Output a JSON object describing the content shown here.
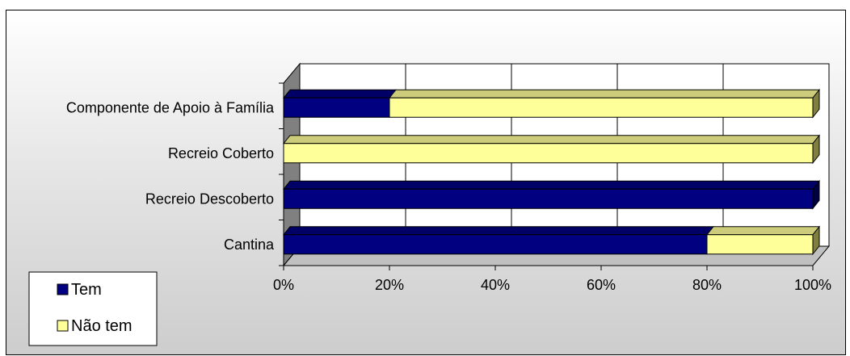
{
  "chart_data": {
    "type": "bar",
    "orientation": "horizontal",
    "stacked": "percent",
    "categories": [
      "Componente de Apoio à Família",
      "Recreio Coberto",
      "Recreio Descoberto",
      "Cantina"
    ],
    "series": [
      {
        "name": "Tem",
        "color": "#000080",
        "values": [
          20,
          0,
          100,
          80
        ]
      },
      {
        "name": "Não tem",
        "color": "#ffff99",
        "values": [
          80,
          100,
          0,
          20
        ]
      }
    ],
    "xlim": [
      0,
      100
    ],
    "x_ticks": [
      "0%",
      "20%",
      "40%",
      "60%",
      "80%",
      "100%"
    ],
    "grid": true,
    "legend_position": "bottom-left",
    "style": "3d"
  }
}
